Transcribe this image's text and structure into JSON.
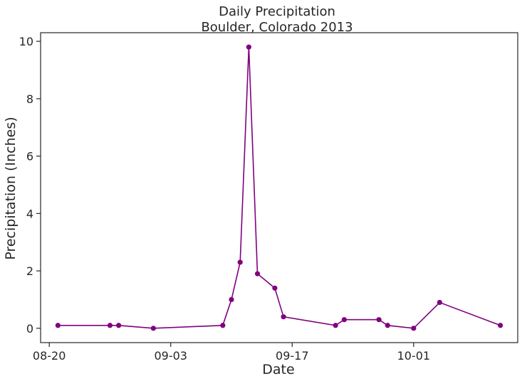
{
  "chart_data": {
    "type": "line",
    "title": "Daily Precipitation",
    "subtitle": "Boulder, Colorado 2013",
    "xlabel": "Date",
    "ylabel": "Precipitation (Inches)",
    "x_ticks": [
      "08-20",
      "09-03",
      "09-17",
      "10-01"
    ],
    "x_tick_dates": [
      "2013-08-20",
      "2013-09-03",
      "2013-09-17",
      "2013-10-01"
    ],
    "xlim": [
      "2013-08-19",
      "2013-10-13"
    ],
    "y_ticks": [
      0,
      2,
      4,
      6,
      8,
      10
    ],
    "ylim": [
      -0.5,
      10.3
    ],
    "grid": false,
    "legend": "none",
    "series": [
      {
        "color": "#800080",
        "marker": "circle",
        "x": [
          "2013-08-21",
          "2013-08-27",
          "2013-08-28",
          "2013-09-01",
          "2013-09-09",
          "2013-09-10",
          "2013-09-11",
          "2013-09-12",
          "2013-09-13",
          "2013-09-15",
          "2013-09-16",
          "2013-09-22",
          "2013-09-23",
          "2013-09-27",
          "2013-09-28",
          "2013-10-01",
          "2013-10-04",
          "2013-10-11"
        ],
        "y": [
          0.1,
          0.1,
          0.1,
          0.0,
          0.1,
          1.0,
          2.3,
          9.8,
          1.9,
          1.4,
          0.4,
          0.1,
          0.3,
          0.3,
          0.1,
          0.0,
          0.9,
          0.1
        ]
      }
    ]
  }
}
